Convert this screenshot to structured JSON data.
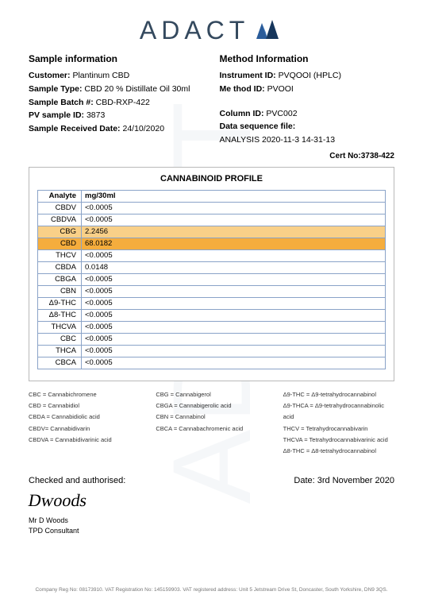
{
  "logo": {
    "text": "ADACT"
  },
  "sample_info": {
    "title": "Sample information",
    "customer_label": "Customer:",
    "customer_value": "Plantinum CBD",
    "type_label": "Sample Type:",
    "type_value": "CBD 20 % Distillate Oil 30ml",
    "batch_label": "Sample Batch #:",
    "batch_value": "CBD-RXP-422",
    "pv_label": "PV sample ID:",
    "pv_value": "3873",
    "recv_label": "Sample Received Date:",
    "recv_value": "24/10/2020"
  },
  "method_info": {
    "title": "Method Information",
    "instr_label": "Instrument ID:",
    "instr_value": "PVQOOI (HPLC)",
    "method_label": "Me thod ID:",
    "method_value": "PVOOI",
    "col_label": "Column ID:",
    "col_value": "PVC002",
    "seq_label": "Data sequence file:",
    "seq_value": "ANALYSIS 2020-11-3  14-31-13"
  },
  "cert": {
    "label": "Cert No:",
    "value": "3738-422"
  },
  "profile": {
    "title": "CANNABINOID PROFILE",
    "col1": "Analyte",
    "col2": "mg/30ml",
    "rows": [
      {
        "a": "CBDV",
        "v": "<0.0005",
        "hl": ""
      },
      {
        "a": "CBDVA",
        "v": "<0.0005",
        "hl": ""
      },
      {
        "a": "CBG",
        "v": "2.2456",
        "hl": "light"
      },
      {
        "a": "CBD",
        "v": "68.0182",
        "hl": "full"
      },
      {
        "a": "THCV",
        "v": "<0.0005",
        "hl": ""
      },
      {
        "a": "CBDA",
        "v": "0.0148",
        "hl": ""
      },
      {
        "a": "CBGA",
        "v": "<0.0005",
        "hl": ""
      },
      {
        "a": "CBN",
        "v": "<0.0005",
        "hl": ""
      },
      {
        "a": "Δ9-THC",
        "v": "<0.0005",
        "hl": ""
      },
      {
        "a": "Δ8-THC",
        "v": "<0.0005",
        "hl": ""
      },
      {
        "a": "THCVA",
        "v": "<0.0005",
        "hl": ""
      },
      {
        "a": "CBC",
        "v": "<0.0005",
        "hl": ""
      },
      {
        "a": "THCA",
        "v": "<0.0005",
        "hl": ""
      },
      {
        "a": "CBCA",
        "v": "<0.0005",
        "hl": ""
      }
    ]
  },
  "legend": {
    "c1": [
      "CBC = Cannabichromene",
      "CBD = Cannabidiol",
      "CBDA = Cannabidiolic acid",
      "CBDV= Cannabidivarin",
      "CBDVA = Cannabidivarinic acid"
    ],
    "c2": [
      "CBG = Cannabigerol",
      "CBGA = Cannabigerolic acid",
      "CBN = Cannabinol",
      "CBCA = Cannabachromenic acid"
    ],
    "c3": [
      "Δ9-THC = Δ9-tetrahydrocannabinol",
      "Δ9-THCA = Δ9-tetrahydrocannabinolic acid",
      "THCV = Tetrahydrocannabivarin",
      "THCVA = Tetrahydrocannabivarinic acid",
      "Δ8-THC = Δ8-tetrahydrocannabinol"
    ]
  },
  "sign": {
    "checked_label": "Checked and authorised:",
    "date_label": "Date:",
    "date_value": "3rd November 2020",
    "name": "Mr D Woods",
    "role": "TPD Consultant"
  },
  "footer": "Company Reg No: 08173910. VAT Registration No: 145159903. VAT registered address: Unit 5 Jetstream Drive St, Doncaster, South Yorkshire, DN9 3QS."
}
